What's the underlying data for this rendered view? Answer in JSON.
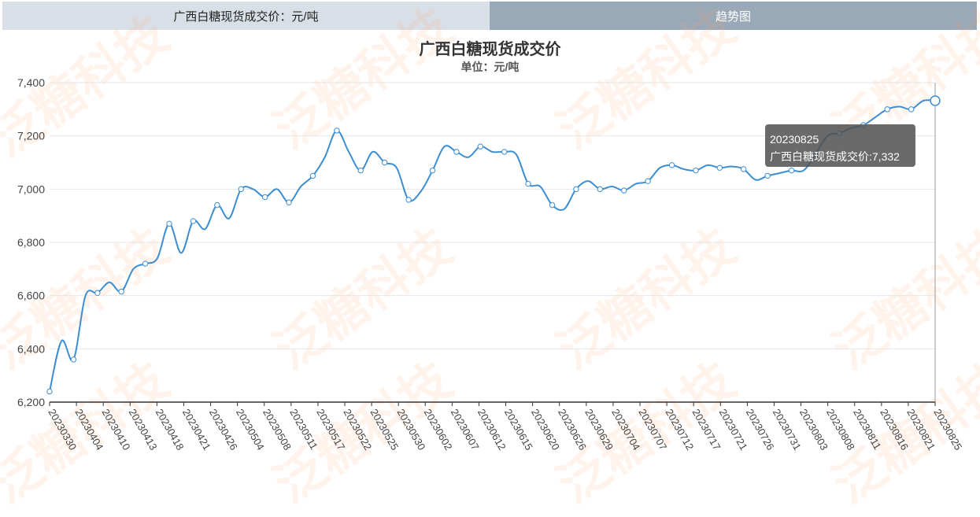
{
  "tabs": {
    "left_label": "广西白糖现货成交价：元/吨",
    "right_label": "趋势图"
  },
  "watermark": "泛糖科技",
  "tooltip": {
    "date": "20230825",
    "text": "广西白糖现货成交价:7,332"
  },
  "colors": {
    "line": "#3c8ed2",
    "tab_left": "#d9dfe6",
    "tab_right": "#9aa9b8",
    "watermark": "#ffa06e"
  },
  "chart_data": {
    "type": "line",
    "title": "广西白糖现货成交价",
    "subtitle": "单位：元/吨",
    "ylim": [
      6200,
      7400
    ],
    "yticks": [
      6200,
      6400,
      6600,
      6800,
      7000,
      7200,
      7400
    ],
    "ytick_labels": [
      "6,200",
      "6,400",
      "6,600",
      "6,800",
      "7,000",
      "7,200",
      "7,400"
    ],
    "xtick_labels": [
      "20230330",
      "20230404",
      "20230410",
      "20230413",
      "20230418",
      "20230421",
      "20230426",
      "20230504",
      "20230508",
      "20230511",
      "20230517",
      "20230522",
      "20230525",
      "20230530",
      "20230602",
      "20230607",
      "20230612",
      "20230615",
      "20230620",
      "20230626",
      "20230629",
      "20230704",
      "20230707",
      "20230712",
      "20230717",
      "20230721",
      "20230726",
      "20230731",
      "20230803",
      "20230808",
      "20230811",
      "20230816",
      "20230821",
      "20230825"
    ],
    "grid": true,
    "series": [
      {
        "name": "广西白糖现货成交价",
        "values": [
          6240,
          6430,
          6360,
          6600,
          6610,
          6650,
          6615,
          6700,
          6720,
          6740,
          6870,
          6760,
          6880,
          6850,
          6940,
          6890,
          7000,
          7000,
          6970,
          7000,
          6950,
          7010,
          7050,
          7120,
          7220,
          7140,
          7070,
          7140,
          7100,
          7080,
          6960,
          6990,
          7070,
          7160,
          7140,
          7120,
          7160,
          7140,
          7140,
          7130,
          7020,
          7010,
          6940,
          6925,
          7000,
          7030,
          7000,
          7010,
          6995,
          7020,
          7030,
          7080,
          7090,
          7075,
          7070,
          7090,
          7080,
          7085,
          7075,
          7035,
          7050,
          7060,
          7070,
          7070,
          7130,
          7200,
          7210,
          7230,
          7240,
          7270,
          7300,
          7310,
          7300,
          7332,
          7332
        ]
      }
    ]
  }
}
